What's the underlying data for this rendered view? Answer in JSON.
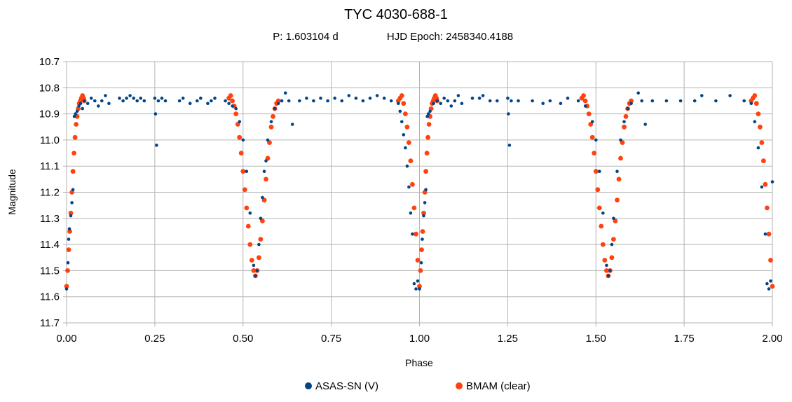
{
  "chart_data": {
    "type": "scatter",
    "title": "TYC 4030-688-1",
    "subtitle_period": "P: 1.603104 d",
    "subtitle_epoch": "HJD Epoch: 2458340.4188",
    "xlabel": "Phase",
    "ylabel": "Magnitude",
    "xlim": [
      0,
      2
    ],
    "ylim": [
      10.7,
      11.7
    ],
    "y_reversed": true,
    "grid": true,
    "x_ticks": [
      "0.00",
      "0.25",
      "0.50",
      "0.75",
      "1.00",
      "1.25",
      "1.50",
      "1.75",
      "2.00"
    ],
    "y_ticks": [
      "10.7",
      "10.8",
      "10.9",
      "11.0",
      "11.1",
      "11.2",
      "11.3",
      "11.4",
      "11.5",
      "11.6",
      "11.7"
    ],
    "legend_position": "bottom",
    "series": [
      {
        "name": "ASAS-SN (V)",
        "color": "#004586",
        "points": [
          [
            0.0,
            11.57
          ],
          [
            0.004,
            11.47
          ],
          [
            0.006,
            11.38
          ],
          [
            0.008,
            11.34
          ],
          [
            0.012,
            11.29
          ],
          [
            0.015,
            11.24
          ],
          [
            0.018,
            11.19
          ],
          [
            0.022,
            10.91
          ],
          [
            0.025,
            10.9
          ],
          [
            0.03,
            10.89
          ],
          [
            0.035,
            10.87
          ],
          [
            0.04,
            10.86
          ],
          [
            0.045,
            10.88
          ],
          [
            0.05,
            10.85
          ],
          [
            0.06,
            10.86
          ],
          [
            0.07,
            10.84
          ],
          [
            0.08,
            10.85
          ],
          [
            0.09,
            10.87
          ],
          [
            0.1,
            10.85
          ],
          [
            0.11,
            10.83
          ],
          [
            0.12,
            10.86
          ],
          [
            0.15,
            10.84
          ],
          [
            0.16,
            10.85
          ],
          [
            0.17,
            10.84
          ],
          [
            0.18,
            10.83
          ],
          [
            0.19,
            10.84
          ],
          [
            0.2,
            10.85
          ],
          [
            0.21,
            10.84
          ],
          [
            0.22,
            10.85
          ],
          [
            0.25,
            10.84
          ],
          [
            0.252,
            10.9
          ],
          [
            0.255,
            11.02
          ],
          [
            0.26,
            10.85
          ],
          [
            0.27,
            10.84
          ],
          [
            0.28,
            10.85
          ],
          [
            0.32,
            10.85
          ],
          [
            0.33,
            10.84
          ],
          [
            0.35,
            10.86
          ],
          [
            0.37,
            10.85
          ],
          [
            0.38,
            10.84
          ],
          [
            0.4,
            10.86
          ],
          [
            0.41,
            10.85
          ],
          [
            0.42,
            10.84
          ],
          [
            0.45,
            10.85
          ],
          [
            0.46,
            10.86
          ],
          [
            0.47,
            10.87
          ],
          [
            0.48,
            10.88
          ],
          [
            0.49,
            10.93
          ],
          [
            0.5,
            11.0
          ],
          [
            0.51,
            11.12
          ],
          [
            0.52,
            11.28
          ],
          [
            0.53,
            11.48
          ],
          [
            0.535,
            11.52
          ],
          [
            0.54,
            11.5
          ],
          [
            0.545,
            11.4
          ],
          [
            0.55,
            11.3
          ],
          [
            0.555,
            11.22
          ],
          [
            0.56,
            11.12
          ],
          [
            0.565,
            11.08
          ],
          [
            0.57,
            11.0
          ],
          [
            0.58,
            10.93
          ],
          [
            0.59,
            10.88
          ],
          [
            0.6,
            10.86
          ],
          [
            0.61,
            10.85
          ],
          [
            0.62,
            10.82
          ],
          [
            0.63,
            10.85
          ],
          [
            0.64,
            10.94
          ],
          [
            0.66,
            10.85
          ],
          [
            0.68,
            10.84
          ],
          [
            0.7,
            10.85
          ],
          [
            0.72,
            10.84
          ],
          [
            0.74,
            10.85
          ],
          [
            0.76,
            10.84
          ],
          [
            0.78,
            10.85
          ],
          [
            0.8,
            10.83
          ],
          [
            0.82,
            10.84
          ],
          [
            0.84,
            10.85
          ],
          [
            0.86,
            10.84
          ],
          [
            0.88,
            10.83
          ],
          [
            0.9,
            10.84
          ],
          [
            0.92,
            10.85
          ],
          [
            0.94,
            10.86
          ],
          [
            0.945,
            10.89
          ],
          [
            0.95,
            10.93
          ],
          [
            0.955,
            10.98
          ],
          [
            0.96,
            11.03
          ],
          [
            0.965,
            11.1
          ],
          [
            0.97,
            11.18
          ],
          [
            0.975,
            11.28
          ],
          [
            0.98,
            11.36
          ],
          [
            0.985,
            11.55
          ],
          [
            0.99,
            11.57
          ],
          [
            0.995,
            11.54
          ],
          [
            1.0,
            11.57
          ],
          [
            1.005,
            11.47
          ],
          [
            1.008,
            11.38
          ],
          [
            1.012,
            11.29
          ],
          [
            1.015,
            11.24
          ],
          [
            1.018,
            11.19
          ],
          [
            1.022,
            10.91
          ],
          [
            1.025,
            10.9
          ],
          [
            1.03,
            10.89
          ],
          [
            1.04,
            10.86
          ],
          [
            1.05,
            10.85
          ],
          [
            1.06,
            10.86
          ],
          [
            1.07,
            10.84
          ],
          [
            1.08,
            10.85
          ],
          [
            1.09,
            10.87
          ],
          [
            1.1,
            10.85
          ],
          [
            1.11,
            10.83
          ],
          [
            1.12,
            10.86
          ],
          [
            1.15,
            10.84
          ],
          [
            1.17,
            10.84
          ],
          [
            1.18,
            10.83
          ],
          [
            1.2,
            10.85
          ],
          [
            1.22,
            10.85
          ],
          [
            1.25,
            10.84
          ],
          [
            1.252,
            10.9
          ],
          [
            1.255,
            11.02
          ],
          [
            1.26,
            10.85
          ],
          [
            1.28,
            10.85
          ],
          [
            1.32,
            10.85
          ],
          [
            1.35,
            10.86
          ],
          [
            1.37,
            10.85
          ],
          [
            1.4,
            10.86
          ],
          [
            1.42,
            10.84
          ],
          [
            1.45,
            10.85
          ],
          [
            1.47,
            10.87
          ],
          [
            1.49,
            10.93
          ],
          [
            1.5,
            11.0
          ],
          [
            1.51,
            11.12
          ],
          [
            1.52,
            11.28
          ],
          [
            1.53,
            11.48
          ],
          [
            1.535,
            11.52
          ],
          [
            1.54,
            11.5
          ],
          [
            1.545,
            11.4
          ],
          [
            1.55,
            11.3
          ],
          [
            1.56,
            11.12
          ],
          [
            1.57,
            11.0
          ],
          [
            1.58,
            10.93
          ],
          [
            1.59,
            10.88
          ],
          [
            1.6,
            10.86
          ],
          [
            1.62,
            10.82
          ],
          [
            1.63,
            10.85
          ],
          [
            1.64,
            10.94
          ],
          [
            1.66,
            10.85
          ],
          [
            1.7,
            10.85
          ],
          [
            1.74,
            10.85
          ],
          [
            1.78,
            10.85
          ],
          [
            1.8,
            10.83
          ],
          [
            1.84,
            10.85
          ],
          [
            1.88,
            10.83
          ],
          [
            1.92,
            10.85
          ],
          [
            1.94,
            10.86
          ],
          [
            1.95,
            10.93
          ],
          [
            1.96,
            11.03
          ],
          [
            1.97,
            11.18
          ],
          [
            1.98,
            11.36
          ],
          [
            1.985,
            11.55
          ],
          [
            1.99,
            11.57
          ],
          [
            1.995,
            11.54
          ],
          [
            2.0,
            11.16
          ]
        ]
      },
      {
        "name": "BMAM (clear)",
        "color": "#ff420e",
        "points": [
          [
            0.0,
            11.56
          ],
          [
            0.003,
            11.5
          ],
          [
            0.006,
            11.42
          ],
          [
            0.009,
            11.35
          ],
          [
            0.012,
            11.28
          ],
          [
            0.015,
            11.2
          ],
          [
            0.018,
            11.12
          ],
          [
            0.021,
            11.05
          ],
          [
            0.024,
            10.99
          ],
          [
            0.027,
            10.94
          ],
          [
            0.03,
            10.91
          ],
          [
            0.033,
            10.88
          ],
          [
            0.036,
            10.86
          ],
          [
            0.039,
            10.85
          ],
          [
            0.042,
            10.84
          ],
          [
            0.045,
            10.83
          ],
          [
            0.048,
            10.84
          ],
          [
            0.05,
            10.85
          ],
          [
            0.46,
            10.84
          ],
          [
            0.465,
            10.83
          ],
          [
            0.47,
            10.85
          ],
          [
            0.475,
            10.87
          ],
          [
            0.48,
            10.9
          ],
          [
            0.485,
            10.94
          ],
          [
            0.49,
            10.99
          ],
          [
            0.495,
            11.05
          ],
          [
            0.5,
            11.12
          ],
          [
            0.505,
            11.19
          ],
          [
            0.51,
            11.26
          ],
          [
            0.515,
            11.33
          ],
          [
            0.52,
            11.4
          ],
          [
            0.525,
            11.46
          ],
          [
            0.53,
            11.5
          ],
          [
            0.535,
            11.52
          ],
          [
            0.54,
            11.5
          ],
          [
            0.545,
            11.45
          ],
          [
            0.55,
            11.38
          ],
          [
            0.555,
            11.31
          ],
          [
            0.56,
            11.23
          ],
          [
            0.565,
            11.15
          ],
          [
            0.57,
            11.07
          ],
          [
            0.575,
            11.01
          ],
          [
            0.58,
            10.95
          ],
          [
            0.585,
            10.91
          ],
          [
            0.59,
            10.88
          ],
          [
            0.595,
            10.86
          ],
          [
            0.6,
            10.85
          ],
          [
            0.94,
            10.85
          ],
          [
            0.945,
            10.84
          ],
          [
            0.95,
            10.83
          ],
          [
            0.955,
            10.86
          ],
          [
            0.96,
            10.9
          ],
          [
            0.965,
            10.95
          ],
          [
            0.97,
            11.01
          ],
          [
            0.975,
            11.08
          ],
          [
            0.98,
            11.17
          ],
          [
            0.985,
            11.26
          ],
          [
            0.99,
            11.36
          ],
          [
            0.995,
            11.46
          ],
          [
            1.0,
            11.56
          ],
          [
            1.003,
            11.5
          ],
          [
            1.006,
            11.42
          ],
          [
            1.009,
            11.35
          ],
          [
            1.012,
            11.28
          ],
          [
            1.015,
            11.2
          ],
          [
            1.018,
            11.12
          ],
          [
            1.021,
            11.05
          ],
          [
            1.024,
            10.99
          ],
          [
            1.027,
            10.94
          ],
          [
            1.03,
            10.91
          ],
          [
            1.033,
            10.88
          ],
          [
            1.036,
            10.86
          ],
          [
            1.039,
            10.85
          ],
          [
            1.042,
            10.84
          ],
          [
            1.045,
            10.83
          ],
          [
            1.048,
            10.84
          ],
          [
            1.05,
            10.85
          ],
          [
            1.46,
            10.84
          ],
          [
            1.465,
            10.83
          ],
          [
            1.47,
            10.85
          ],
          [
            1.475,
            10.87
          ],
          [
            1.48,
            10.9
          ],
          [
            1.485,
            10.94
          ],
          [
            1.49,
            10.99
          ],
          [
            1.495,
            11.05
          ],
          [
            1.5,
            11.12
          ],
          [
            1.505,
            11.19
          ],
          [
            1.51,
            11.26
          ],
          [
            1.515,
            11.33
          ],
          [
            1.52,
            11.4
          ],
          [
            1.525,
            11.46
          ],
          [
            1.53,
            11.5
          ],
          [
            1.535,
            11.52
          ],
          [
            1.54,
            11.5
          ],
          [
            1.545,
            11.45
          ],
          [
            1.55,
            11.38
          ],
          [
            1.555,
            11.31
          ],
          [
            1.56,
            11.23
          ],
          [
            1.565,
            11.15
          ],
          [
            1.57,
            11.07
          ],
          [
            1.575,
            11.01
          ],
          [
            1.58,
            10.95
          ],
          [
            1.585,
            10.91
          ],
          [
            1.59,
            10.88
          ],
          [
            1.595,
            10.86
          ],
          [
            1.6,
            10.85
          ],
          [
            1.94,
            10.85
          ],
          [
            1.945,
            10.84
          ],
          [
            1.95,
            10.83
          ],
          [
            1.955,
            10.86
          ],
          [
            1.96,
            10.9
          ],
          [
            1.965,
            10.95
          ],
          [
            1.97,
            11.01
          ],
          [
            1.975,
            11.08
          ],
          [
            1.98,
            11.17
          ],
          [
            1.985,
            11.26
          ],
          [
            1.99,
            11.36
          ],
          [
            1.995,
            11.46
          ],
          [
            2.0,
            11.56
          ]
        ]
      }
    ]
  }
}
